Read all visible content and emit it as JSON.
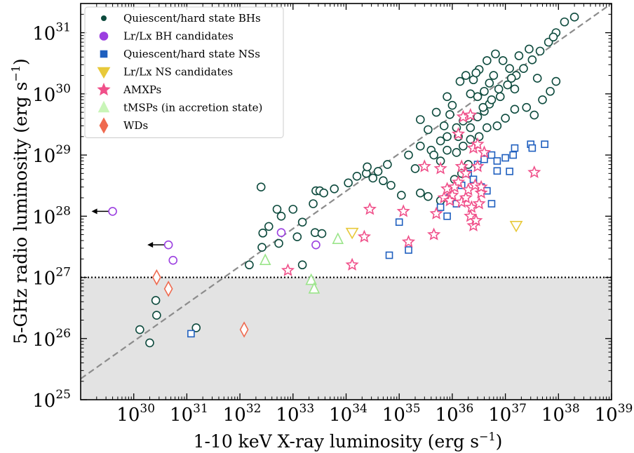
{
  "chart_data": {
    "type": "scatter",
    "title": "",
    "xlabel": "1-10 keV X-ray luminosity (erg s",
    "xlabel_sup": "−1",
    "xlabel_close": ")",
    "ylabel": "5-GHz radio luminosity (erg s",
    "ylabel_sup": "−1",
    "ylabel_close": ")",
    "x_scale": "log",
    "y_scale": "log",
    "xlim": [
      1e+29,
      1e+39
    ],
    "ylim": [
      1e+25,
      3e+31
    ],
    "x_ticks": [
      {
        "value": 1e+30,
        "base": "10",
        "exp": "30"
      },
      {
        "value": 1e+31,
        "base": "10",
        "exp": "31"
      },
      {
        "value": 1e+32,
        "base": "10",
        "exp": "32"
      },
      {
        "value": 1e+33,
        "base": "10",
        "exp": "33"
      },
      {
        "value": 1e+34,
        "base": "10",
        "exp": "34"
      },
      {
        "value": 1e+35,
        "base": "10",
        "exp": "35"
      },
      {
        "value": 1e+36,
        "base": "10",
        "exp": "36"
      },
      {
        "value": 1e+37,
        "base": "10",
        "exp": "37"
      },
      {
        "value": 1e+38,
        "base": "10",
        "exp": "38"
      },
      {
        "value": 1e+39,
        "base": "10",
        "exp": "39"
      }
    ],
    "y_ticks": [
      {
        "value": 1e+25,
        "base": "10",
        "exp": "25"
      },
      {
        "value": 1e+26,
        "base": "10",
        "exp": "26"
      },
      {
        "value": 1e+27,
        "base": "10",
        "exp": "27"
      },
      {
        "value": 1e+28,
        "base": "10",
        "exp": "28"
      },
      {
        "value": 1e+29,
        "base": "10",
        "exp": "29"
      },
      {
        "value": 1e+30,
        "base": "10",
        "exp": "30"
      },
      {
        "value": 1e+31,
        "base": "10",
        "exp": "31"
      }
    ],
    "legend_position": "top-left",
    "detection_threshold_y": 1e+27,
    "shaded_region_below_y": 1e+27,
    "correlation_line": {
      "points": [
        [
          1e+29,
          2.2e+25
        ],
        [
          1e+39,
          3e+31
        ]
      ]
    },
    "series": [
      {
        "name": "Quiescent/hard state BHs",
        "marker": "circle",
        "color": "#0d4a3d",
        "points": [
          [
            1.3e+30,
            1.4e+26
          ],
          [
            2e+30,
            8.5e+25
          ],
          [
            2.7e+30,
            2.4e+26
          ],
          [
            2.6e+30,
            4.2e+26
          ],
          [
            1.5e+31,
            1.5e+26
          ],
          [
            1.5e+32,
            1.6e+27
          ],
          [
            2.6e+32,
            3.1e+27
          ],
          [
            5.4e+32,
            3.6e+27
          ],
          [
            1.2e+33,
            4.6e+27
          ],
          [
            1.5e+33,
            1.6e+27
          ],
          [
            2.5e+32,
            3e+28
          ],
          [
            3.5e+32,
            6.8e+27
          ],
          [
            2.7e+32,
            5.3e+27
          ],
          [
            5e+32,
            1.3e+28
          ],
          [
            6e+32,
            1e+28
          ],
          [
            1e+33,
            1.3e+28
          ],
          [
            1.5e+33,
            8e+27
          ],
          [
            2.4e+33,
            1.6e+28
          ],
          [
            2.6e+33,
            5.4e+27
          ],
          [
            3.5e+33,
            5.2e+27
          ],
          [
            2.7e+33,
            2.6e+28
          ],
          [
            3.2e+33,
            2.6e+28
          ],
          [
            3.8e+33,
            2.4e+28
          ],
          [
            6e+33,
            2.8e+28
          ],
          [
            1.1e+34,
            3.5e+28
          ],
          [
            1.6e+34,
            4.5e+28
          ],
          [
            2.4e+34,
            5e+28
          ],
          [
            3.2e+34,
            4.2e+28
          ],
          [
            5e+34,
            3.8e+28
          ],
          [
            7e+34,
            3.2e+28
          ],
          [
            1.1e+35,
            2.2e+28
          ],
          [
            2.5e+35,
            2.4e+28
          ],
          [
            3.5e+35,
            2.1e+28
          ],
          [
            6e+35,
            1.8e+28
          ],
          [
            2.5e+34,
            6.4e+28
          ],
          [
            4e+34,
            5.4e+28
          ],
          [
            6e+34,
            7e+28
          ],
          [
            2e+35,
            6e+28
          ],
          [
            1.5e+35,
            1e+29
          ],
          [
            2.5e+35,
            1.4e+29
          ],
          [
            4e+35,
            1.2e+29
          ],
          [
            6e+35,
            1.7e+29
          ],
          [
            8e+35,
            2e+29
          ],
          [
            1.2e+36,
            2.8e+29
          ],
          [
            1.6e+36,
            3.6e+29
          ],
          [
            2e+36,
            4e+29
          ],
          [
            3e+36,
            4.2e+29
          ],
          [
            4e+36,
            5.2e+29
          ],
          [
            5e+36,
            6.8e+29
          ],
          [
            8e+36,
            9e+29
          ],
          [
            1.1e+37,
            1.4e+30
          ],
          [
            1.6e+37,
            2e+30
          ],
          [
            2.2e+37,
            2.6e+30
          ],
          [
            3.2e+37,
            3.6e+30
          ],
          [
            4.5e+37,
            5e+30
          ],
          [
            6.5e+37,
            7e+30
          ],
          [
            9e+37,
            1e+31
          ],
          [
            1.3e+38,
            1.5e+31
          ],
          [
            2e+38,
            1.8e+31
          ],
          [
            2.5e+36,
            1.7e+30
          ],
          [
            3.2e+36,
            2.5e+30
          ],
          [
            4.5e+36,
            3.5e+30
          ],
          [
            6e+36,
            2e+30
          ],
          [
            1.8e+37,
            4.2e+30
          ],
          [
            2.8e+37,
            5.4e+30
          ],
          [
            8e+37,
            8.5e+30
          ],
          [
            3e+36,
            9e+29
          ],
          [
            4e+36,
            1.1e+30
          ],
          [
            5e+36,
            1.5e+30
          ],
          [
            8e+35,
            9e+29
          ],
          [
            1e+36,
            6.5e+29
          ],
          [
            1.4e+36,
            1.6e+30
          ],
          [
            1.8e+36,
            2e+30
          ],
          [
            2.2e+36,
            1e+30
          ],
          [
            1.2e+36,
            1.1e+29
          ],
          [
            1.6e+36,
            1.4e+29
          ],
          [
            2.2e+36,
            1.8e+29
          ],
          [
            3.2e+36,
            2e+29
          ],
          [
            4.5e+36,
            2.8e+29
          ],
          [
            7e+36,
            3e+29
          ],
          [
            1e+37,
            4e+29
          ],
          [
            1.5e+37,
            5.6e+29
          ],
          [
            2.5e+37,
            6e+29
          ],
          [
            3.5e+37,
            4.5e+29
          ],
          [
            5e+37,
            8e+29
          ],
          [
            7e+37,
            1.1e+30
          ],
          [
            9e+37,
            1.6e+30
          ],
          [
            5e+35,
            5e+29
          ],
          [
            7e+35,
            3e+29
          ],
          [
            9e+35,
            4.6e+29
          ],
          [
            1.3e+36,
            2e+29
          ],
          [
            2.8e+36,
            2.2e+30
          ],
          [
            6.5e+36,
            4.5e+30
          ],
          [
            1.2e+37,
            2.6e+30
          ],
          [
            4e+37,
            1.8e+30
          ],
          [
            2.5e+35,
            3.8e+29
          ],
          [
            3.5e+35,
            2.6e+29
          ],
          [
            4.5e+35,
            1e+29
          ],
          [
            6e+35,
            8e+28
          ],
          [
            8e+35,
            1.2e+29
          ],
          [
            1.1e+36,
            4e+28
          ],
          [
            1.5e+36,
            5e+28
          ],
          [
            2e+36,
            7e+28
          ],
          [
            9e+36,
            3.5e+30
          ],
          [
            1.5e+37,
            1.2e+30
          ],
          [
            2.2e+36,
            2.8e+29
          ],
          [
            3.8e+36,
            6e+29
          ],
          [
            5.5e+36,
            8e+29
          ],
          [
            7.5e+36,
            1.2e+30
          ],
          [
            1.3e+37,
            1.8e+30
          ]
        ]
      },
      {
        "name": "Lr/Lx BH candidates",
        "marker": "circle",
        "color": "#9b3fe0",
        "points": [
          [
            4e+29,
            1.2e+28
          ],
          [
            4.5e+30,
            3.4e+27
          ],
          [
            5.5e+30,
            1.9e+27
          ],
          [
            6e+32,
            5.4e+27
          ],
          [
            2.7e+33,
            3.4e+27
          ]
        ],
        "upper_limit_x": [
          [
            4e+29,
            1.2e+28
          ],
          [
            4.5e+30,
            3.4e+27
          ]
        ]
      },
      {
        "name": "Quiescent/hard state NSs",
        "marker": "square",
        "color": "#1f5fbf",
        "points": [
          [
            1.2e+31,
            1.2e+26
          ],
          [
            6.5e+34,
            2.3e+27
          ],
          [
            1e+35,
            8e+27
          ],
          [
            1.5e+35,
            2.8e+27
          ],
          [
            6e+35,
            1.4e+28
          ],
          [
            9e+35,
            2e+28
          ],
          [
            1.2e+36,
            1.6e+28
          ],
          [
            1.5e+36,
            3.2e+28
          ],
          [
            2e+36,
            5e+28
          ],
          [
            3e+36,
            7e+28
          ],
          [
            4e+36,
            8.5e+28
          ],
          [
            5.5e+36,
            1e+29
          ],
          [
            7e+36,
            8e+28
          ],
          [
            1e+37,
            9e+28
          ],
          [
            1.5e+37,
            1.3e+29
          ],
          [
            3e+37,
            1.5e+29
          ],
          [
            3.2e+37,
            1.3e+29
          ],
          [
            5.5e+37,
            1.5e+29
          ],
          [
            2.5e+36,
            4e+28
          ],
          [
            3.5e+36,
            3e+28
          ],
          [
            4.5e+36,
            2.6e+28
          ],
          [
            5.5e+36,
            1.6e+28
          ],
          [
            7e+36,
            5.5e+28
          ],
          [
            1.2e+37,
            5.4e+28
          ],
          [
            8e+35,
            1e+28
          ],
          [
            1.4e+37,
            1e+29
          ]
        ]
      },
      {
        "name": "Lr/Lx NS candidates",
        "marker": "triangle-down",
        "color": "#e8c93a",
        "points": [
          [
            1.3e+34,
            5.4e+27
          ],
          [
            1.6e+37,
            7e+27
          ]
        ]
      },
      {
        "name": "AMXPs",
        "marker": "star",
        "color": "#f0508a",
        "points": [
          [
            8e+32,
            1.3e+27
          ],
          [
            1.3e+34,
            1.6e+27
          ],
          [
            2.2e+34,
            4.6e+27
          ],
          [
            2.8e+34,
            1.3e+28
          ],
          [
            1.2e+35,
            1.2e+28
          ],
          [
            1.5e+35,
            3.8e+27
          ],
          [
            4.5e+35,
            5e+27
          ],
          [
            5e+35,
            1.1e+28
          ],
          [
            6e+35,
            6e+28
          ],
          [
            7e+35,
            2e+28
          ],
          [
            8e+35,
            2.8e+28
          ],
          [
            1e+36,
            2.2e+28
          ],
          [
            1.3e+36,
            3.6e+28
          ],
          [
            1.5e+36,
            1.7e+28
          ],
          [
            1.8e+36,
            2e+28
          ],
          [
            2e+36,
            2.7e+28
          ],
          [
            2.2e+36,
            1e+28
          ],
          [
            2.5e+36,
            7e+27
          ],
          [
            2.7e+36,
            3.2e+28
          ],
          [
            3e+36,
            6.5e+28
          ],
          [
            3.5e+36,
            2.4e+28
          ],
          [
            4e+36,
            1.1e+29
          ],
          [
            1.5e+36,
            6.5e+28
          ],
          [
            1.3e+36,
            2.2e+29
          ],
          [
            1.6e+36,
            4.2e+29
          ],
          [
            2.2e+36,
            4.5e+29
          ],
          [
            2.5e+36,
            1.3e+29
          ],
          [
            3e+36,
            1.5e+29
          ],
          [
            3.5e+36,
            3e+28
          ],
          [
            2.8e+36,
            8.5e+27
          ],
          [
            3.5e+37,
            5.2e+28
          ],
          [
            1.8e+36,
            5e+28
          ],
          [
            1.1e+36,
            3e+28
          ],
          [
            9e+35,
            1.8e+28
          ],
          [
            3e+35,
            6.5e+28
          ],
          [
            2.3e+36,
            1.4e+28
          ],
          [
            3.2e+36,
            1.6e+28
          ]
        ]
      },
      {
        "name": "tMSPs (in accretion state)",
        "marker": "triangle-up",
        "color": "#9be58a",
        "points": [
          [
            3e+32,
            1.9e+27
          ],
          [
            2.2e+33,
            9e+26
          ],
          [
            2.5e+33,
            6.5e+26
          ],
          [
            7e+33,
            4.2e+27
          ]
        ]
      },
      {
        "name": "WDs",
        "marker": "diamond",
        "color": "#ef6a4f",
        "points": [
          [
            2.7e+30,
            1e+27
          ],
          [
            4.5e+30,
            6.5e+26
          ],
          [
            1.2e+32,
            1.4e+26
          ]
        ]
      }
    ]
  },
  "legend": {
    "items": [
      {
        "label": "Quiescent/hard state BHs",
        "marker": "circle-small",
        "color": "#0d4a3d"
      },
      {
        "label": "Lr/Lx BH candidates",
        "marker": "circle",
        "color": "#9b3fe0"
      },
      {
        "label": "Quiescent/hard state NSs",
        "marker": "square",
        "color": "#1f5fbf"
      },
      {
        "label": "Lr/Lx NS candidates",
        "marker": "triangle-down",
        "color": "#e8c93a"
      },
      {
        "label": "AMXPs",
        "marker": "star",
        "color": "#f0508a"
      },
      {
        "label": "tMSPs (in accretion state)",
        "marker": "triangle-up",
        "color": "#c9f5b8"
      },
      {
        "label": "WDs",
        "marker": "diamond",
        "color": "#ef6a4f"
      }
    ]
  }
}
